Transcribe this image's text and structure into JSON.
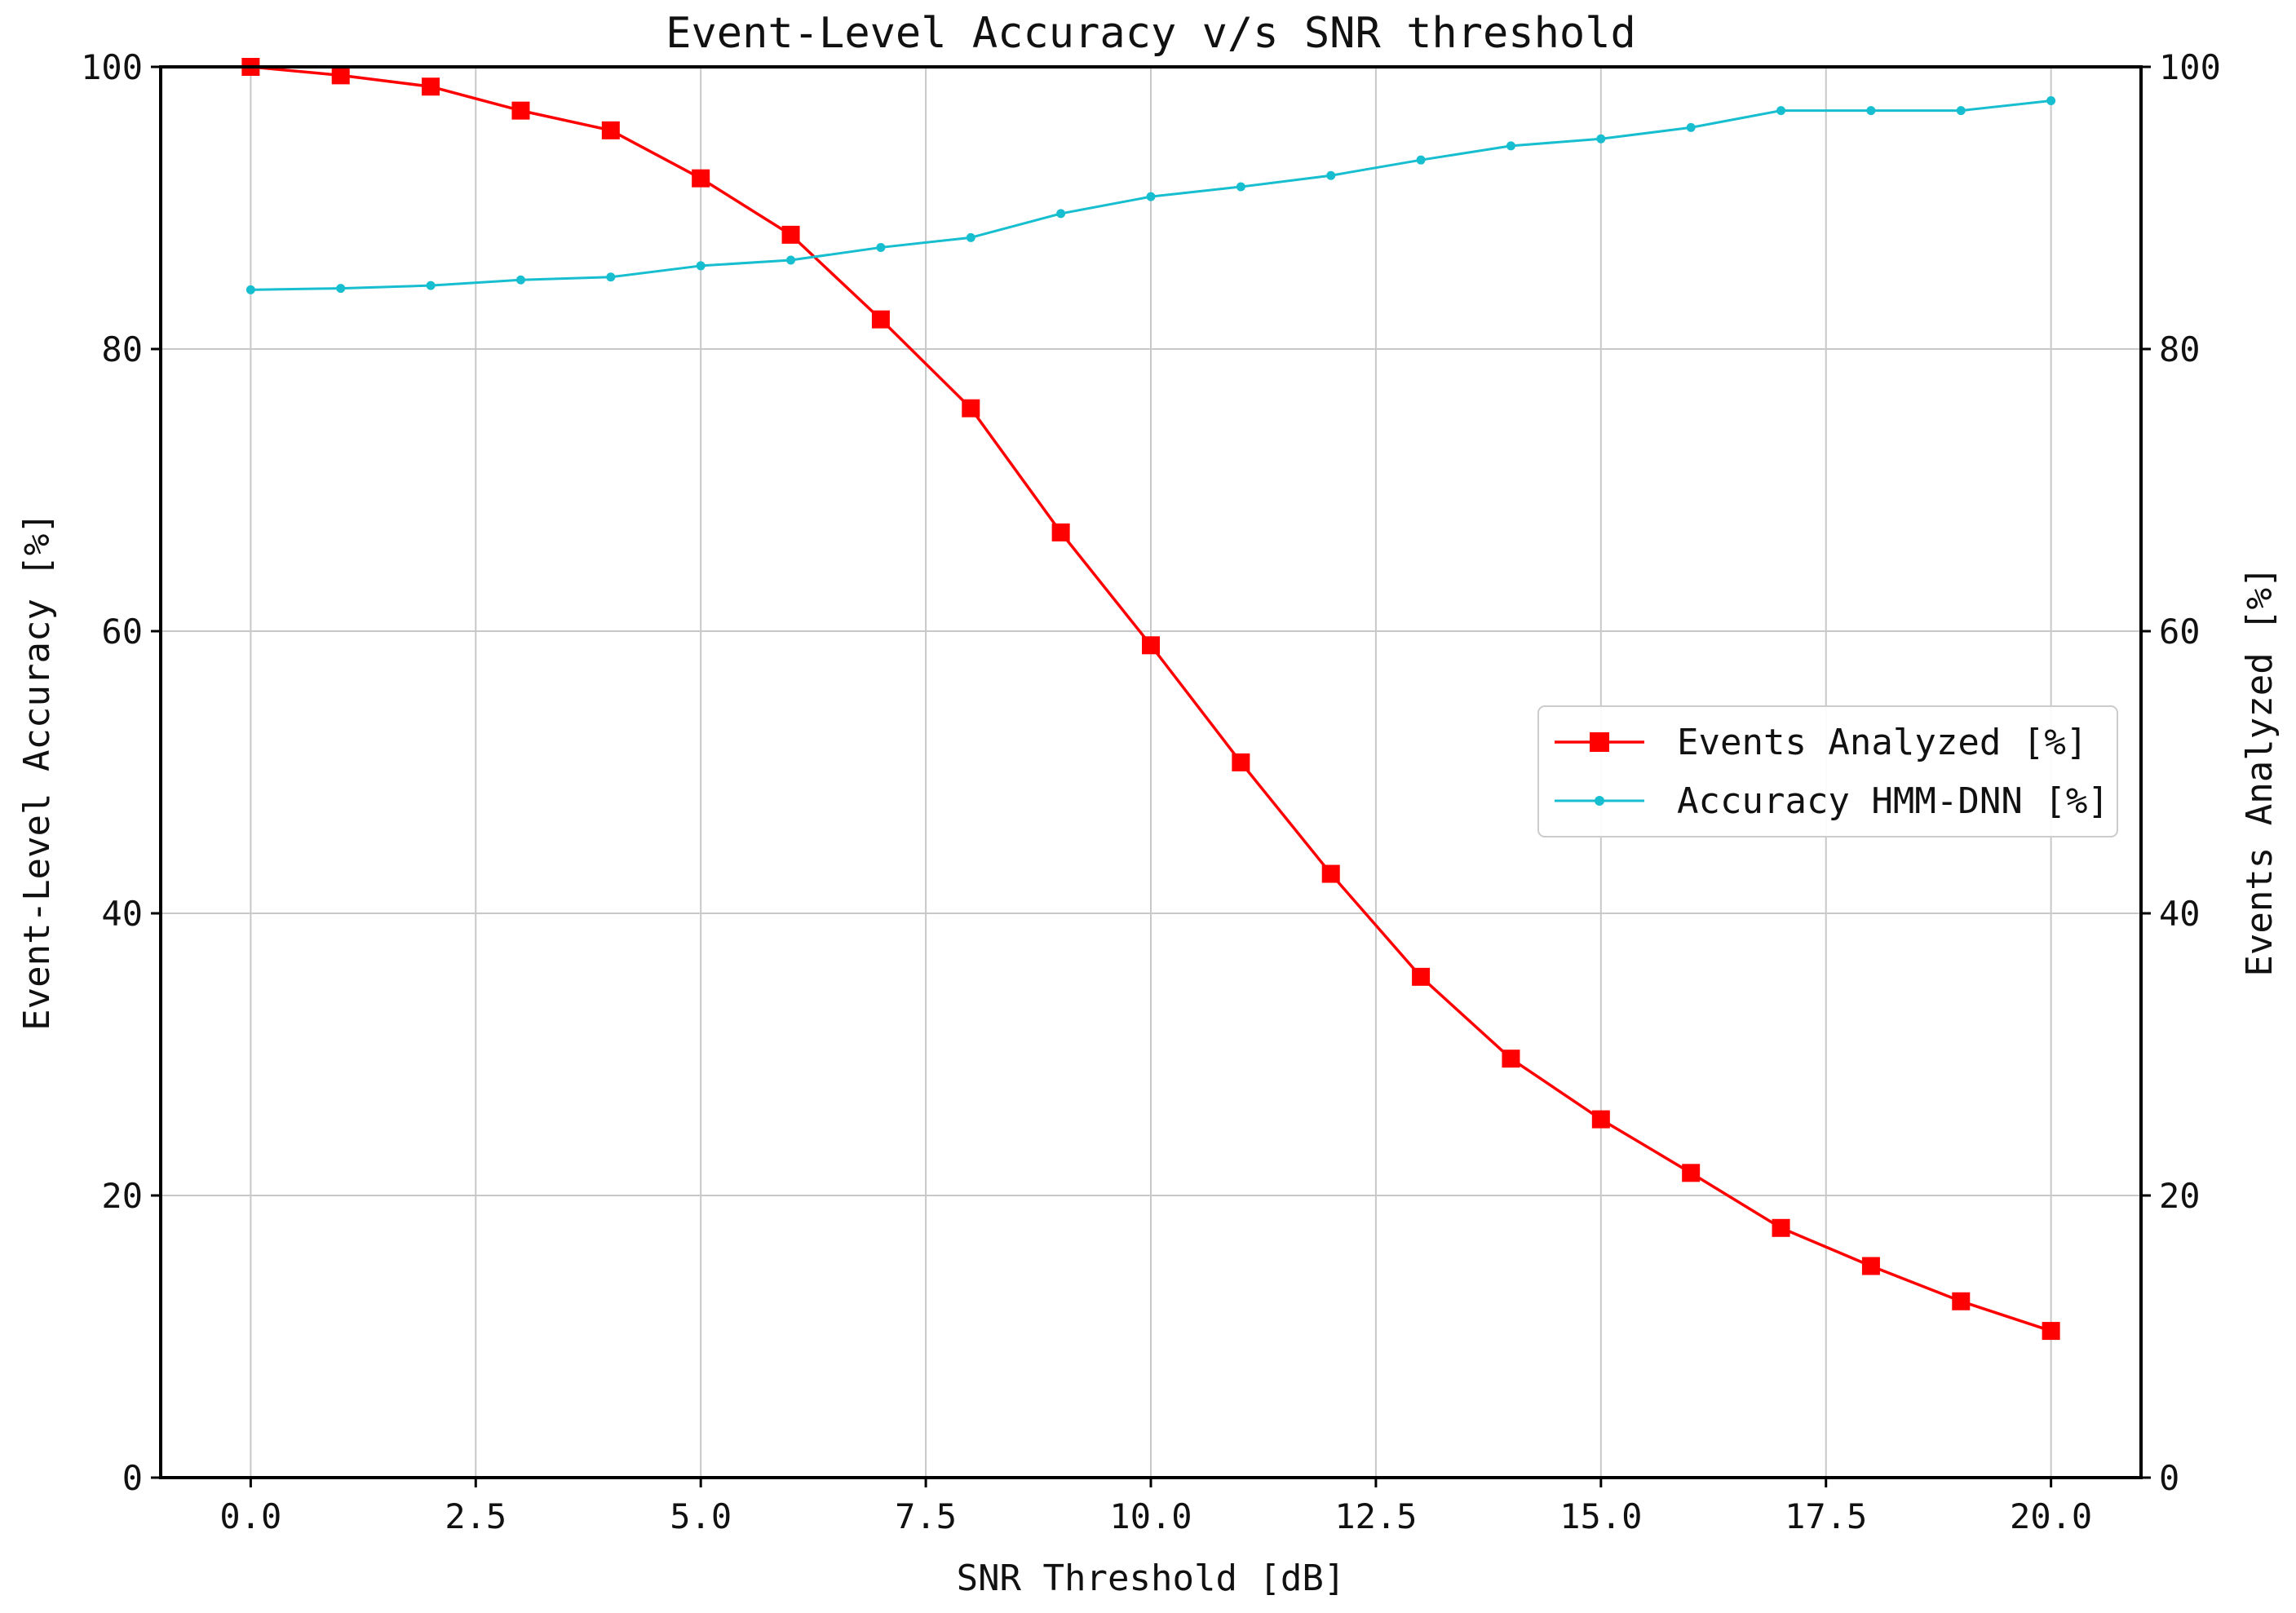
{
  "chart_data": {
    "type": "line",
    "title": "Event-Level Accuracy v/s SNR threshold",
    "xlabel": "SNR Threshold [dB]",
    "ylabel_left": "Event-Level Accuracy [%]",
    "ylabel_right": "Events Analyzed [%]",
    "xlim": [
      -1.0,
      21.0
    ],
    "ylim": [
      0,
      100
    ],
    "x_ticks": [
      "0.0",
      "2.5",
      "5.0",
      "7.5",
      "10.0",
      "12.5",
      "15.0",
      "17.5",
      "20.0"
    ],
    "y_ticks": [
      "0",
      "20",
      "40",
      "60",
      "80",
      "100"
    ],
    "grid": true,
    "legend_position": "center-right",
    "x": [
      0,
      1,
      2,
      3,
      4,
      5,
      6,
      7,
      8,
      9,
      10,
      11,
      12,
      13,
      14,
      15,
      16,
      17,
      18,
      19,
      20
    ],
    "series": [
      {
        "name": "Events Analyzed [%]",
        "axis": "right",
        "color": "#ff0000",
        "marker": "square",
        "values": [
          100.0,
          99.4,
          98.6,
          96.9,
          95.5,
          92.1,
          88.1,
          82.1,
          75.8,
          67.0,
          59.0,
          50.7,
          42.8,
          35.5,
          29.7,
          25.4,
          21.6,
          17.7,
          15.0,
          12.5,
          10.4
        ]
      },
      {
        "name": "Accuracy HMM-DNN [%]",
        "axis": "left",
        "color": "#17becf",
        "marker": "dot",
        "values": [
          84.2,
          84.3,
          84.5,
          84.9,
          85.1,
          85.9,
          86.3,
          87.2,
          87.9,
          89.6,
          90.8,
          91.5,
          92.3,
          93.4,
          94.4,
          94.9,
          95.7,
          96.9,
          96.9,
          96.9,
          97.6
        ]
      }
    ]
  }
}
